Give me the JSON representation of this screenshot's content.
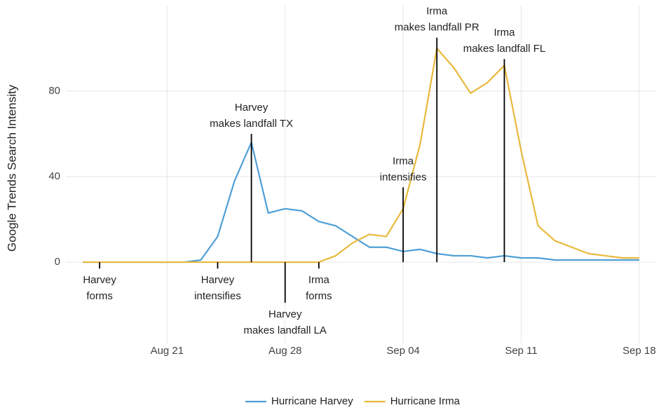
{
  "chart_data": {
    "type": "line",
    "y_label": "Google Trends Search Intensity",
    "x": [
      "Aug 16",
      "Aug 17",
      "Aug 18",
      "Aug 19",
      "Aug 20",
      "Aug 21",
      "Aug 22",
      "Aug 23",
      "Aug 24",
      "Aug 25",
      "Aug 26",
      "Aug 27",
      "Aug 28",
      "Aug 29",
      "Aug 30",
      "Aug 31",
      "Sep 01",
      "Sep 02",
      "Sep 03",
      "Sep 04",
      "Sep 05",
      "Sep 06",
      "Sep 07",
      "Sep 08",
      "Sep 09",
      "Sep 10",
      "Sep 11",
      "Sep 12",
      "Sep 13",
      "Sep 14",
      "Sep 15",
      "Sep 16",
      "Sep 17",
      "Sep 18"
    ],
    "series": [
      {
        "name": "Hurricane Harvey",
        "color": "#4f9fd6",
        "values": [
          0,
          0,
          0,
          0,
          0,
          0,
          0,
          1,
          12,
          38,
          56,
          23,
          25,
          24,
          19,
          17,
          12,
          7,
          7,
          5,
          6,
          4,
          3,
          3,
          2,
          3,
          2,
          2,
          1,
          1,
          1,
          1,
          1,
          1
        ]
      },
      {
        "name": "Hurricane Irma",
        "color": "#e8b93c",
        "values": [
          0,
          0,
          0,
          0,
          0,
          0,
          0,
          0,
          0,
          0,
          0,
          0,
          0,
          0,
          0,
          3,
          9,
          13,
          12,
          25,
          55,
          100,
          91,
          79,
          84,
          92,
          52,
          17,
          10,
          7,
          4,
          3,
          2,
          2
        ]
      }
    ],
    "xlim": [
      "Aug 15",
      "Sep 19"
    ],
    "xticks": [
      "Aug 21",
      "Aug 28",
      "Sep 04",
      "Sep 11",
      "Sep 18"
    ],
    "ylim": [
      -38,
      120
    ],
    "yticks": [
      0,
      40,
      80
    ],
    "grid": true,
    "legend": "bottom",
    "annotations": [
      {
        "x": "Aug 17",
        "y": -3,
        "text": [
          "Harvey",
          "forms"
        ]
      },
      {
        "x": "Aug 24",
        "y": -3,
        "text": [
          "Harvey",
          "intensifies"
        ]
      },
      {
        "x": "Aug 26",
        "y": 60,
        "text": [
          "Harvey",
          "makes landfall TX"
        ]
      },
      {
        "x": "Aug 28",
        "y": -19,
        "text": [
          "Harvey",
          "makes landfall LA"
        ]
      },
      {
        "x": "Aug 30",
        "y": -3,
        "text": [
          "Irma",
          "forms"
        ]
      },
      {
        "x": "Sep 04",
        "y": 35,
        "text": [
          "Irma",
          "intensifies"
        ]
      },
      {
        "x": "Sep 06",
        "y": 105,
        "text": [
          "Irma",
          "makes landfall PR"
        ]
      },
      {
        "x": "Sep 10",
        "y": 95,
        "text": [
          "Irma",
          "makes landfall FL"
        ]
      }
    ]
  }
}
